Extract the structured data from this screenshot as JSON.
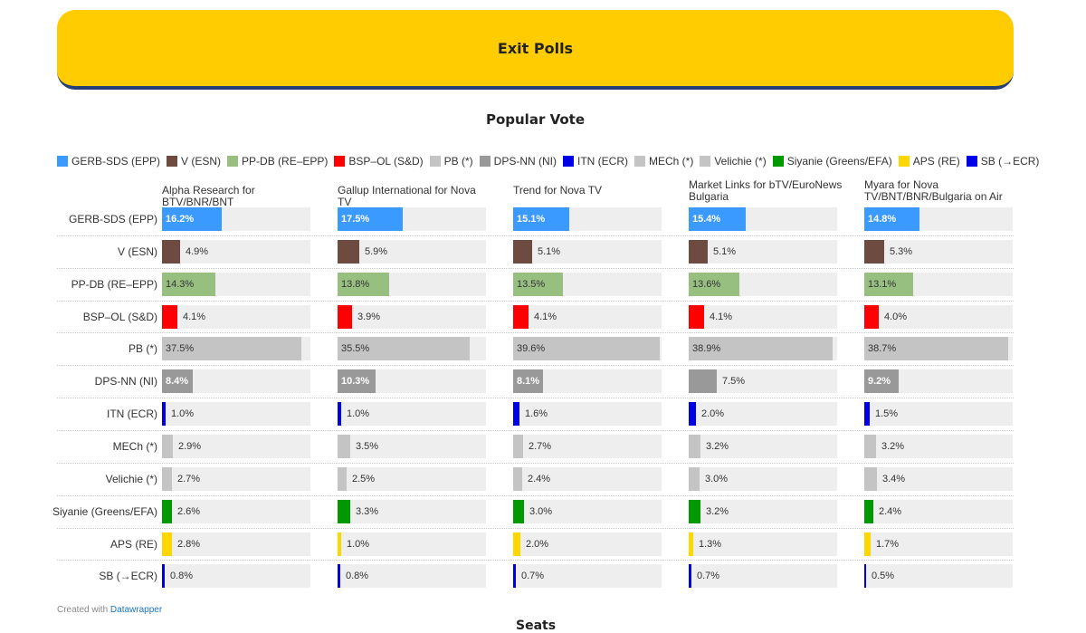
{
  "banner": {
    "title": "Exit Polls"
  },
  "section": {
    "title": "Popular Vote",
    "next_title_cut": "Seats"
  },
  "chart_data": {
    "type": "bar",
    "title": "Popular Vote",
    "orientation": "horizontal",
    "unit": "%",
    "parties": [
      {
        "name": "GERB-SDS (EPP)",
        "color": "#3a9aff"
      },
      {
        "name": "V (ESN)",
        "color": "#6e4b40"
      },
      {
        "name": "PP-DB (RE–EPP)",
        "color": "#97bf80"
      },
      {
        "name": "BSP–OL (S&D)",
        "color": "#ff0000"
      },
      {
        "name": "PB (*)",
        "color": "#c4c4c4"
      },
      {
        "name": "DPS-NN (NI)",
        "color": "#999999"
      },
      {
        "name": "ITN (ECR)",
        "color": "#0000e6"
      },
      {
        "name": "MECh (*)",
        "color": "#c4c4c4"
      },
      {
        "name": "Velichie (*)",
        "color": "#c4c4c4"
      },
      {
        "name": "Siyanie (Greens/EFA)",
        "color": "#009a00"
      },
      {
        "name": "APS (RE)",
        "color": "#ffd700"
      },
      {
        "name": "SB (→ECR)",
        "color": "#0000e6"
      }
    ],
    "polls": [
      {
        "name": "Alpha Research for BTV/BNR/BNT",
        "values": [
          16.2,
          4.9,
          14.3,
          4.1,
          37.5,
          8.4,
          1.0,
          2.9,
          2.7,
          2.6,
          2.8,
          0.8
        ]
      },
      {
        "name": "Gallup International for Nova TV",
        "values": [
          17.5,
          5.9,
          13.8,
          3.9,
          35.5,
          10.3,
          1.0,
          3.5,
          2.5,
          3.3,
          1.0,
          0.8
        ]
      },
      {
        "name": "Trend for Nova TV",
        "values": [
          15.1,
          5.1,
          13.5,
          4.1,
          39.6,
          8.1,
          1.6,
          2.7,
          2.4,
          3.0,
          2.0,
          0.7
        ]
      },
      {
        "name": "Market Links for bTV/EuroNews Bulgaria",
        "values": [
          15.4,
          5.1,
          13.6,
          4.1,
          38.9,
          7.5,
          2.0,
          3.2,
          3.0,
          3.2,
          1.3,
          0.7
        ]
      },
      {
        "name": "Myara for Nova TV/BNT/BNR/Bulgaria on Air",
        "values": [
          14.8,
          5.3,
          13.1,
          4.0,
          38.7,
          9.2,
          1.5,
          3.2,
          3.4,
          2.4,
          1.7,
          0.5
        ]
      }
    ],
    "xlim": [
      0,
      40
    ],
    "legend_position": "top",
    "grid": false
  },
  "footer": {
    "prefix": "Created with",
    "link": "Datawrapper"
  }
}
